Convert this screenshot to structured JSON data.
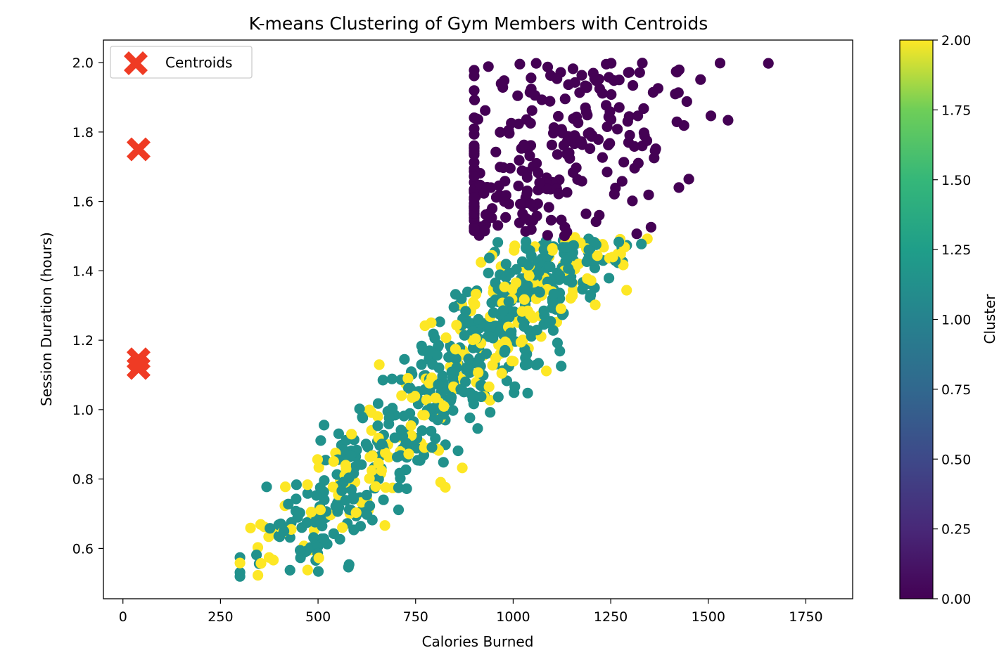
{
  "chart_data": {
    "type": "scatter",
    "title": "K-means Clustering of Gym Members with Centroids",
    "xlabel": "Calories Burned",
    "ylabel": "Session Duration (hours)",
    "xlim": [
      -50,
      1870
    ],
    "ylim": [
      0.455,
      2.065
    ],
    "xticks": [
      0,
      250,
      500,
      750,
      1000,
      1250,
      1500,
      1750
    ],
    "yticks": [
      0.6,
      0.8,
      1.0,
      1.2,
      1.4,
      1.6,
      1.8,
      2.0
    ],
    "xtick_labels": [
      "0",
      "250",
      "500",
      "750",
      "1000",
      "1250",
      "1500",
      "1750"
    ],
    "ytick_labels": [
      "0.6",
      "0.8",
      "1.0",
      "1.2",
      "1.4",
      "1.6",
      "1.8",
      "2.0"
    ],
    "grid": false,
    "legend": {
      "placement": "top-left",
      "entries": [
        "Centroids"
      ]
    },
    "colorbar": {
      "label": "Cluster",
      "range": [
        0,
        2
      ],
      "ticks": [
        "0.00",
        "0.25",
        "0.50",
        "0.75",
        "1.00",
        "1.25",
        "1.50",
        "1.75",
        "2.00"
      ],
      "colormap": "viridis"
    },
    "colors": {
      "cluster_0": "#440154",
      "cluster_1": "#21918c",
      "cluster_2": "#fde725",
      "centroid": "#ef3b24"
    },
    "centroids": [
      {
        "x": 40,
        "y": 1.75
      },
      {
        "x": 40,
        "y": 1.145
      },
      {
        "x": 40,
        "y": 1.12
      }
    ],
    "clusters": [
      {
        "cluster": 0,
        "x_range": [
          880,
          1780
        ],
        "y_range": [
          1.5,
          2.0
        ],
        "approx_count": 270
      },
      {
        "cluster": 1,
        "x_range": [
          300,
          1390
        ],
        "y_range": [
          0.5,
          1.5
        ],
        "approx_count": 490
      },
      {
        "cluster": 2,
        "x_range": [
          370,
          1320
        ],
        "y_range": [
          0.52,
          1.5
        ],
        "approx_count": 210
      }
    ]
  }
}
